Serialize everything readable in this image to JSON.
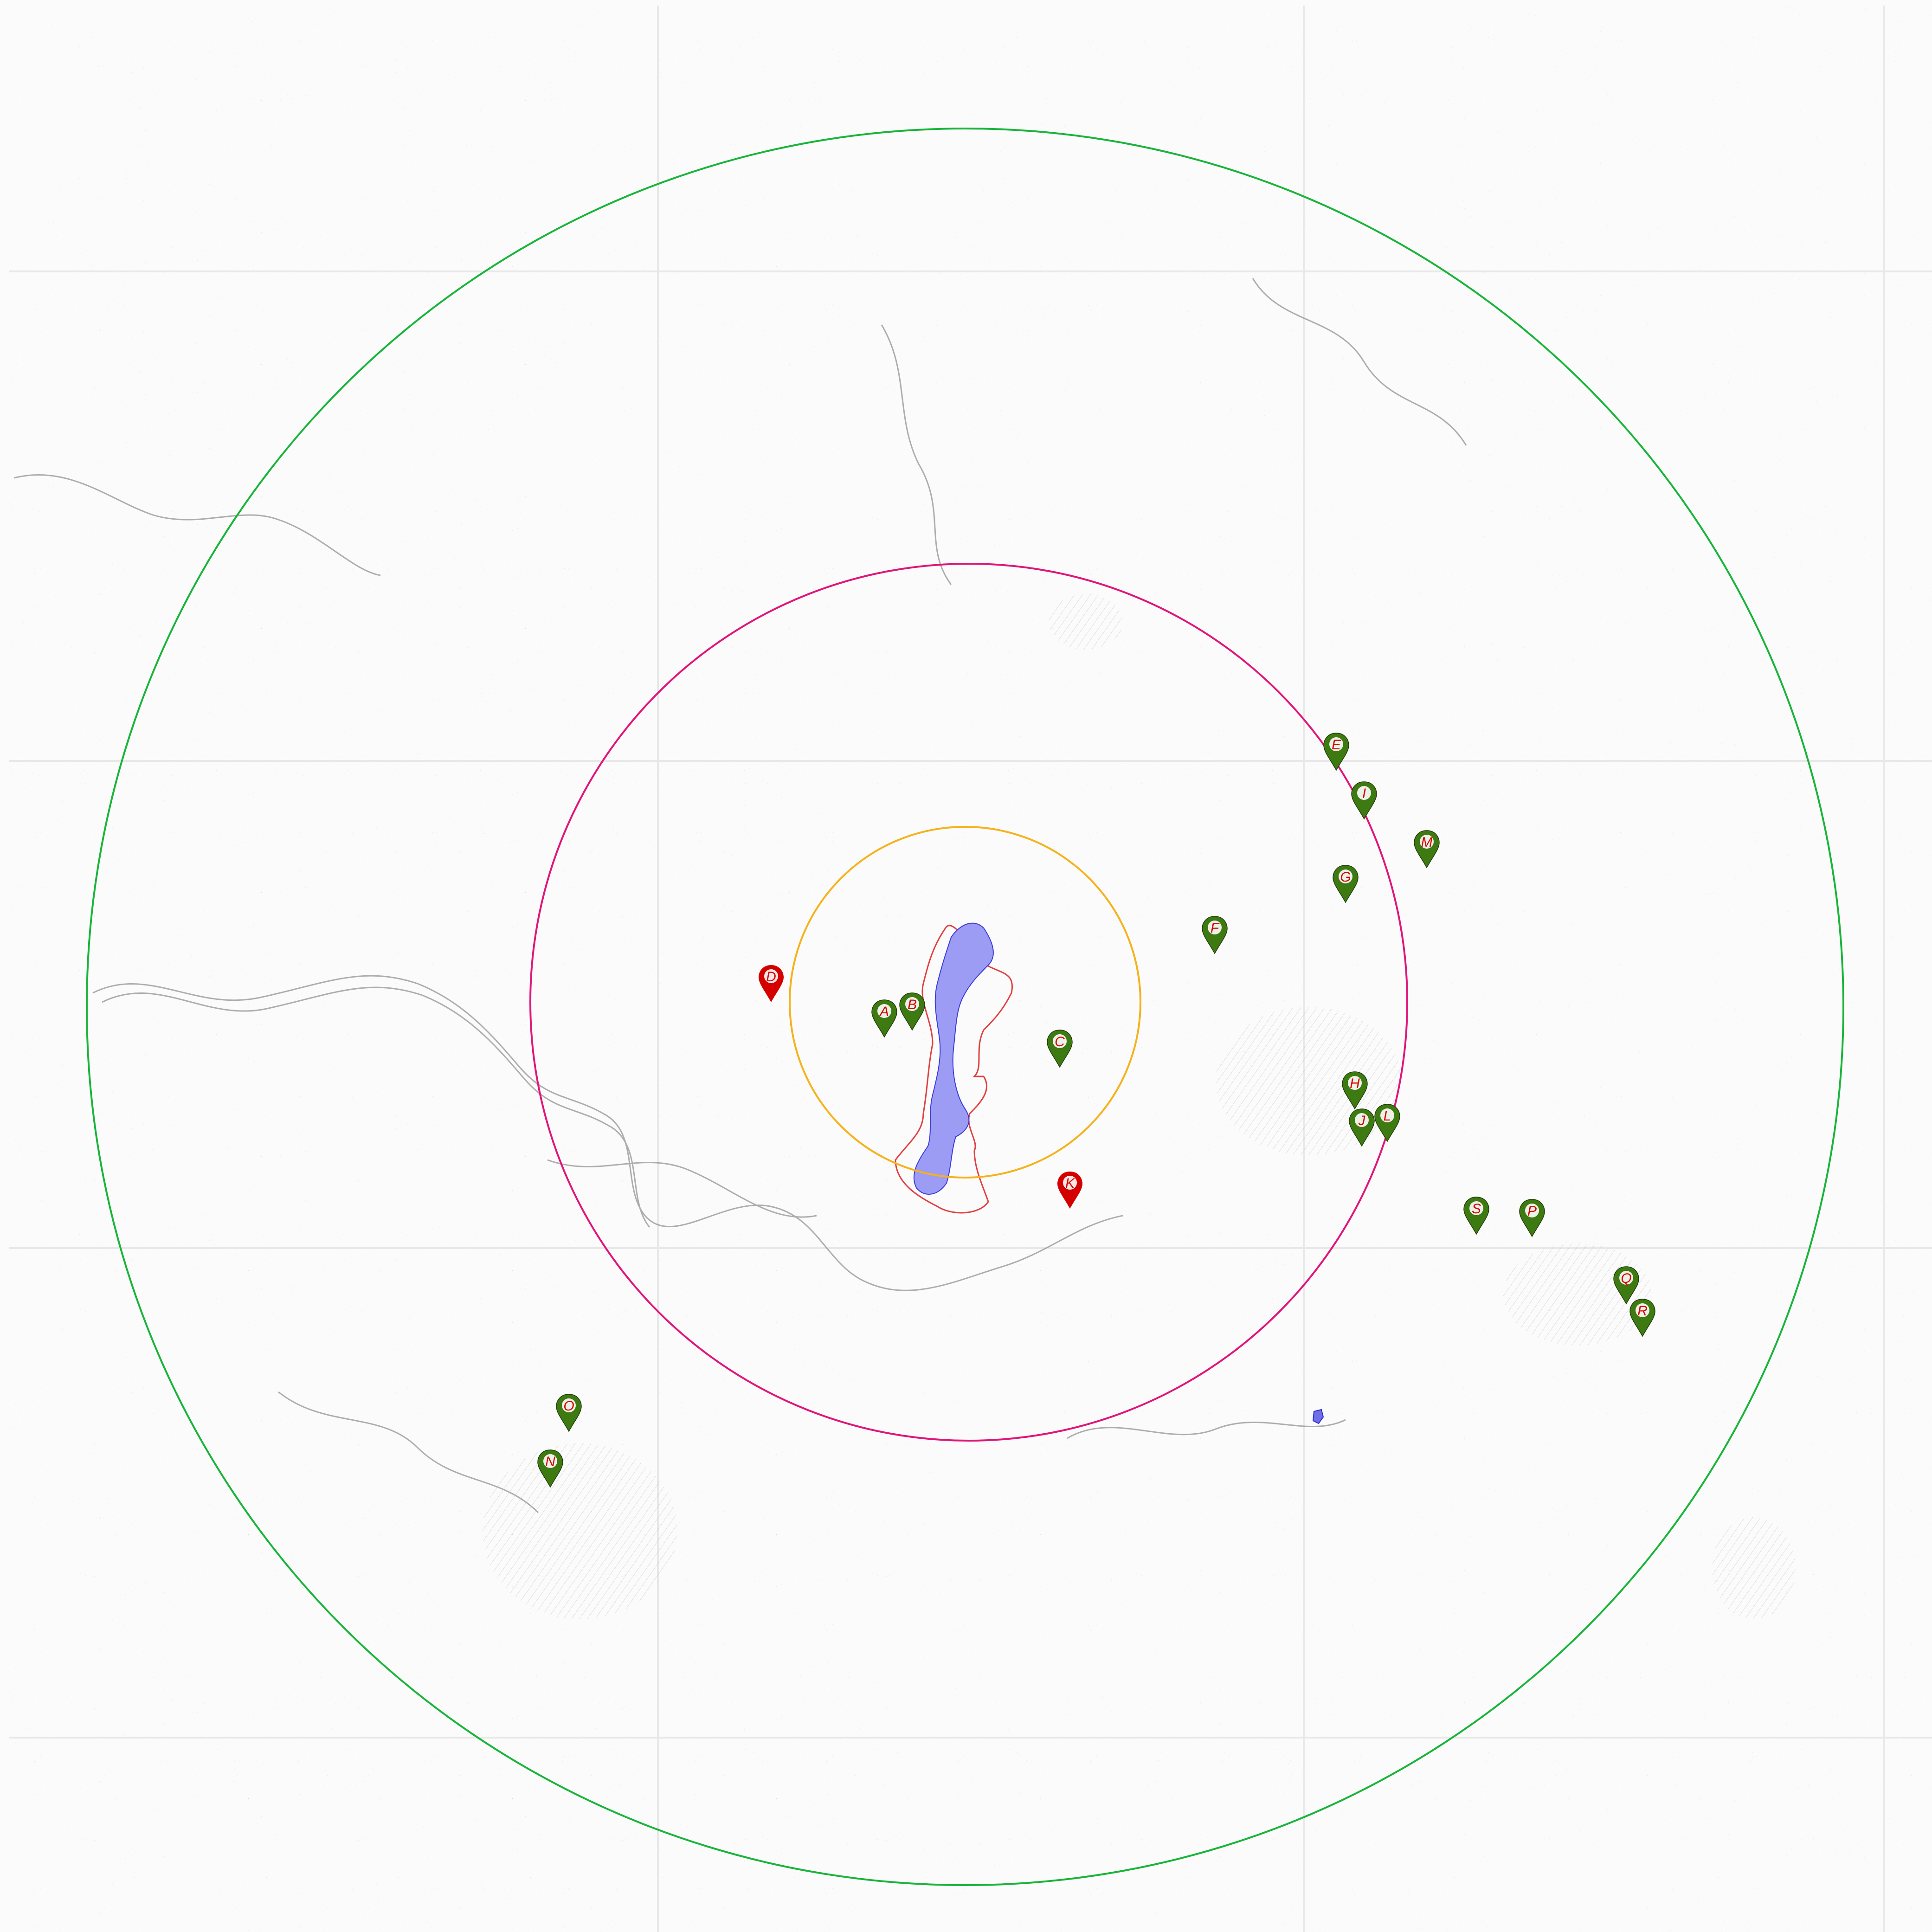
{
  "map": {
    "base": "topographic-grayscale",
    "colors": {
      "background": "#fbfbfb",
      "terrain_line": "#8a8a8a",
      "water_area": "#9c9cf5",
      "water_outline": "#3a3ad8",
      "boundary": "#e04040",
      "ring_inner": "#f5b21b",
      "ring_middle": "#e0157a",
      "ring_outer": "#19b43a",
      "marker_green": "#3e7a12",
      "marker_red": "#d40000",
      "label_text": "#d40000"
    },
    "rings": [
      {
        "name": "inner-ring",
        "color": "#f5b21b"
      },
      {
        "name": "middle-ring",
        "color": "#e0157a"
      },
      {
        "name": "outer-ring",
        "color": "#19b43a"
      }
    ],
    "markers": [
      {
        "label": "A",
        "color": "green"
      },
      {
        "label": "B",
        "color": "green"
      },
      {
        "label": "C",
        "color": "green"
      },
      {
        "label": "D",
        "color": "red"
      },
      {
        "label": "E",
        "color": "green"
      },
      {
        "label": "F",
        "color": "green"
      },
      {
        "label": "G",
        "color": "green"
      },
      {
        "label": "H",
        "color": "green"
      },
      {
        "label": "I",
        "color": "green"
      },
      {
        "label": "J",
        "color": "green"
      },
      {
        "label": "K",
        "color": "red"
      },
      {
        "label": "L",
        "color": "green"
      },
      {
        "label": "M",
        "color": "green"
      },
      {
        "label": "N",
        "color": "green"
      },
      {
        "label": "O",
        "color": "green"
      },
      {
        "label": "P",
        "color": "green"
      },
      {
        "label": "Q",
        "color": "green"
      },
      {
        "label": "R",
        "color": "green"
      },
      {
        "label": "S",
        "color": "green"
      }
    ]
  }
}
